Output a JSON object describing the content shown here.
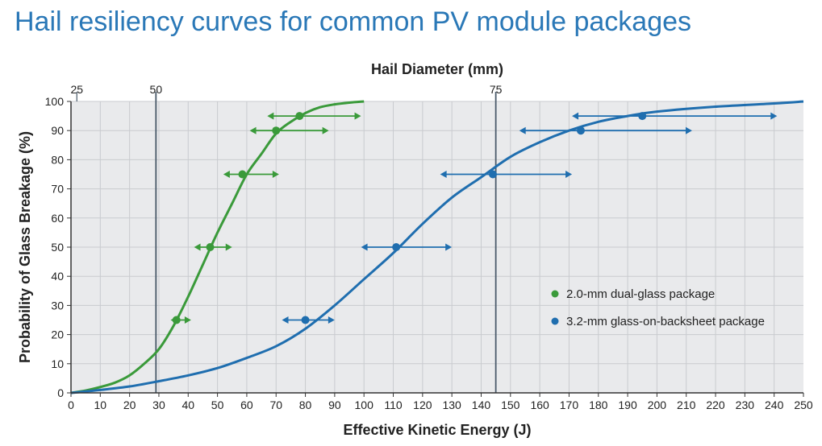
{
  "title": "Hail resiliency curves for common PV module packages",
  "chart_data": {
    "type": "line",
    "top_axis": {
      "label": "Hail Diameter (mm)",
      "ticks": [
        {
          "label": "25",
          "energy": 2
        },
        {
          "label": "50",
          "energy": 29
        },
        {
          "label": "75",
          "energy": 145
        }
      ]
    },
    "xlabel": "Effective Kinetic Energy (J)",
    "ylabel": "Probability of Glass Breakage (%)",
    "xlim": [
      0,
      250
    ],
    "ylim": [
      0,
      100
    ],
    "x_ticks": [
      "0",
      "10",
      "20",
      "30",
      "40",
      "50",
      "60",
      "70",
      "80",
      "90",
      "100",
      "110",
      "120",
      "130",
      "140",
      "150",
      "160",
      "170",
      "180",
      "190",
      "200",
      "210",
      "220",
      "230",
      "240",
      "250"
    ],
    "y_ticks": [
      "0",
      "10",
      "20",
      "30",
      "40",
      "50",
      "60",
      "70",
      "80",
      "90",
      "100"
    ],
    "reference_lines_energy": [
      29,
      145
    ],
    "series": [
      {
        "name": "2.0-mm dual-glass package",
        "color": "#3a9a3a",
        "curve": [
          [
            0,
            0
          ],
          [
            5,
            0.8
          ],
          [
            10,
            2
          ],
          [
            15,
            3.5
          ],
          [
            20,
            6
          ],
          [
            25,
            10
          ],
          [
            30,
            15
          ],
          [
            35,
            23
          ],
          [
            40,
            33
          ],
          [
            45,
            44
          ],
          [
            50,
            55
          ],
          [
            55,
            65
          ],
          [
            60,
            75
          ],
          [
            65,
            82
          ],
          [
            70,
            89
          ],
          [
            75,
            93
          ],
          [
            80,
            96
          ],
          [
            85,
            98
          ],
          [
            90,
            99
          ],
          [
            95,
            99.6
          ],
          [
            100,
            100
          ]
        ],
        "points": [
          {
            "x": 36,
            "y": 25,
            "lo": 34,
            "hi": 41
          },
          {
            "x": 47.5,
            "y": 50,
            "lo": 42,
            "hi": 55
          },
          {
            "x": 58.5,
            "y": 75,
            "lo": 52,
            "hi": 71
          },
          {
            "x": 70,
            "y": 90,
            "lo": 61,
            "hi": 88
          },
          {
            "x": 78,
            "y": 95,
            "lo": 67,
            "hi": 99
          }
        ]
      },
      {
        "name": "3.2-mm glass-on-backsheet package",
        "color": "#1f6eaf",
        "curve": [
          [
            0,
            0
          ],
          [
            10,
            1
          ],
          [
            20,
            2.2
          ],
          [
            30,
            4
          ],
          [
            40,
            6
          ],
          [
            50,
            8.5
          ],
          [
            60,
            12
          ],
          [
            70,
            16
          ],
          [
            80,
            22
          ],
          [
            90,
            30
          ],
          [
            100,
            39
          ],
          [
            110,
            48
          ],
          [
            120,
            58
          ],
          [
            130,
            67
          ],
          [
            140,
            74
          ],
          [
            150,
            81
          ],
          [
            160,
            86
          ],
          [
            170,
            90
          ],
          [
            180,
            93
          ],
          [
            190,
            95
          ],
          [
            200,
            96.5
          ],
          [
            220,
            98.2
          ],
          [
            240,
            99.3
          ],
          [
            250,
            100
          ]
        ],
        "points": [
          {
            "x": 80,
            "y": 25,
            "lo": 72,
            "hi": 90
          },
          {
            "x": 111,
            "y": 50,
            "lo": 99,
            "hi": 130
          },
          {
            "x": 144,
            "y": 75,
            "lo": 126,
            "hi": 171
          },
          {
            "x": 174,
            "y": 90,
            "lo": 153,
            "hi": 212
          },
          {
            "x": 195,
            "y": 95,
            "lo": 171,
            "hi": 241
          }
        ]
      }
    ],
    "legend": [
      {
        "label": "2.0-mm dual-glass package",
        "color": "#3a9a3a"
      },
      {
        "label": "3.2-mm glass-on-backsheet package",
        "color": "#1f6eaf"
      }
    ],
    "legend_position": "right-middle"
  }
}
